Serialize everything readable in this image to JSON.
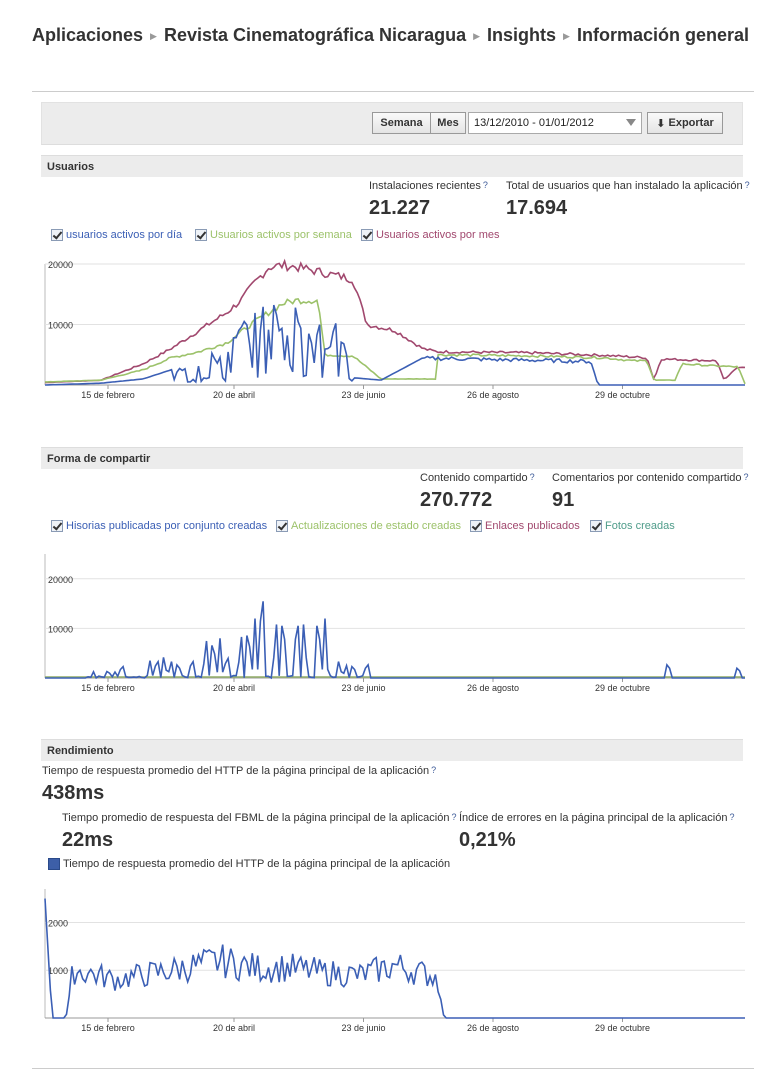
{
  "breadcrumb": [
    "Aplicaciones",
    "Revista Cinematográfica Nicaragua",
    "Insights",
    "Información general"
  ],
  "toolbar": {
    "week_label": "Semana",
    "month_label": "Mes",
    "date_range": "13/12/2010 - 01/01/2012",
    "export_label": "Exportar"
  },
  "usuarios": {
    "title": "Usuarios",
    "stats": [
      {
        "label": "Instalaciones recientes",
        "value": "21.227"
      },
      {
        "label": "Total de usuarios que han instalado la aplicación",
        "value": "17.694"
      }
    ],
    "legend": [
      {
        "label": "usuarios activos por día",
        "color": "#3b5fb5"
      },
      {
        "label": "Usuarios activos por semana",
        "color": "#9cc26a"
      },
      {
        "label": "Usuarios activos por mes",
        "color": "#a1486e"
      }
    ]
  },
  "compartir": {
    "title": "Forma de compartir",
    "stats": [
      {
        "label": "Contenido compartido",
        "value": "270.772"
      },
      {
        "label": "Comentarios por contenido compartido",
        "value": "91"
      }
    ],
    "legend": [
      {
        "label": "Hisorias publicadas por conjunto creadas",
        "color": "#3b5fb5"
      },
      {
        "label": "Actualizaciones de estado creadas",
        "color": "#9cc26a"
      },
      {
        "label": "Enlaces publicados",
        "color": "#a1486e"
      },
      {
        "label": "Fotos creadas",
        "color": "#4f9c8a"
      }
    ]
  },
  "rendimiento": {
    "title": "Rendimiento",
    "stats": [
      {
        "label": "Tiempo de respuesta promedio del HTTP de la página principal de la aplicación",
        "value": "438ms"
      },
      {
        "label": "Tiempo promedio de respuesta del FBML de la página principal de la aplicación",
        "value": "22ms"
      },
      {
        "label": "Índice de errores en la página principal de la aplicación",
        "value": "0,21%"
      }
    ],
    "legend": [
      {
        "label": "Tiempo de respuesta promedio del HTTP de la página principal de la aplicación",
        "color": "#3b5fb5"
      }
    ]
  },
  "chart_data": [
    {
      "type": "line",
      "title": "Usuarios",
      "x_ticks": [
        "15 de febrero",
        "20 de abril",
        "23 de junio",
        "26 de agosto",
        "29 de octubre"
      ],
      "y_ticks": [
        "20000",
        "10000"
      ],
      "ylim": [
        0,
        20000
      ],
      "grid": true,
      "series": [
        {
          "name": "usuarios activos por día",
          "trend": [
            [
              0,
              0
            ],
            [
              8,
              300
            ],
            [
              14,
              1000
            ],
            [
              18,
              2500
            ],
            [
              22,
              4000
            ],
            [
              26,
              5000
            ],
            [
              28,
              9000
            ],
            [
              30,
              10000
            ],
            [
              32,
              12000
            ],
            [
              34,
              12000
            ],
            [
              36,
              11000
            ],
            [
              38,
              10000
            ],
            [
              40,
              8000
            ],
            [
              42,
              9000
            ],
            [
              44,
              1200
            ],
            [
              48,
              800
            ],
            [
              54,
              4500
            ],
            [
              58,
              4500
            ],
            [
              64,
              4300
            ],
            [
              70,
              4200
            ],
            [
              78,
              4000
            ],
            [
              79,
              0
            ],
            [
              100,
              0
            ]
          ]
        },
        {
          "name": "Usuarios activos por semana",
          "trend": [
            [
              0,
              500
            ],
            [
              8,
              800
            ],
            [
              14,
              2500
            ],
            [
              18,
              4500
            ],
            [
              22,
              5500
            ],
            [
              26,
              7000
            ],
            [
              30,
              10500
            ],
            [
              34,
              13500
            ],
            [
              36,
              14000
            ],
            [
              39,
              14000
            ],
            [
              40,
              5000
            ],
            [
              44,
              4800
            ],
            [
              48,
              1000
            ],
            [
              56,
              1000
            ],
            [
              56,
              5000
            ],
            [
              70,
              4800
            ],
            [
              80,
              4500
            ],
            [
              84,
              4000
            ],
            [
              86,
              4000
            ],
            [
              87,
              800
            ],
            [
              90,
              800
            ],
            [
              91,
              3500
            ],
            [
              95,
              3200
            ],
            [
              99,
              3000
            ],
            [
              100,
              200
            ]
          ]
        },
        {
          "name": "Usuarios activos por mes",
          "trend": [
            [
              0,
              400
            ],
            [
              8,
              800
            ],
            [
              14,
              3500
            ],
            [
              18,
              6000
            ],
            [
              22,
              9000
            ],
            [
              26,
              12000
            ],
            [
              28,
              14000
            ],
            [
              30,
              17000
            ],
            [
              32,
              19500
            ],
            [
              34,
              19800
            ],
            [
              36,
              19500
            ],
            [
              40,
              18500
            ],
            [
              44,
              17500
            ],
            [
              46,
              10000
            ],
            [
              50,
              9000
            ],
            [
              54,
              6000
            ],
            [
              56,
              5500
            ],
            [
              70,
              5300
            ],
            [
              80,
              4900
            ],
            [
              86,
              4500
            ],
            [
              87,
              800
            ],
            [
              88,
              4300
            ],
            [
              96,
              4000
            ],
            [
              97,
              800
            ],
            [
              99,
              3000
            ],
            [
              100,
              3000
            ]
          ]
        }
      ]
    },
    {
      "type": "line",
      "title": "Forma de compartir",
      "x_ticks": [
        "15 de febrero",
        "20 de abril",
        "23 de junio",
        "26 de agosto",
        "29 de octubre"
      ],
      "y_ticks": [
        "20000",
        "10000"
      ],
      "ylim": [
        0,
        25000
      ],
      "grid": true,
      "series": [
        {
          "name": "Hisorias publicadas por conjunto creadas",
          "peaks": [
            [
              7,
              1500
            ],
            [
              9,
              2000
            ],
            [
              10,
              1200
            ],
            [
              11,
              3500
            ],
            [
              15,
              3500
            ],
            [
              16,
              5000
            ],
            [
              17,
              5000
            ],
            [
              18,
              4000
            ],
            [
              19,
              4000
            ],
            [
              21,
              5000
            ],
            [
              23,
              9000
            ],
            [
              24,
              10000
            ],
            [
              25,
              8000
            ],
            [
              26,
              6000
            ],
            [
              28,
              10000
            ],
            [
              29,
              13000
            ],
            [
              30,
              12000
            ],
            [
              31,
              23500
            ],
            [
              33,
              13000
            ],
            [
              34,
              16000
            ],
            [
              36,
              16000
            ],
            [
              37,
              13000
            ],
            [
              39,
              16000
            ],
            [
              40,
              12000
            ],
            [
              42,
              4000
            ],
            [
              43,
              3000
            ],
            [
              44,
              3500
            ],
            [
              46,
              4000
            ],
            [
              89,
              4000
            ],
            [
              99,
              3000
            ]
          ]
        },
        {
          "name": "Actualizaciones de estado creadas",
          "values": "near zero"
        },
        {
          "name": "Enlaces publicados",
          "values": "near zero"
        },
        {
          "name": "Fotos creadas",
          "values": "near zero"
        }
      ]
    },
    {
      "type": "line",
      "title": "Rendimiento",
      "x_ticks": [
        "15 de febrero",
        "20 de abril",
        "23 de junio",
        "26 de agosto",
        "29 de octubre"
      ],
      "y_ticks": [
        "2000",
        "1000"
      ],
      "ylim": [
        0,
        2700
      ],
      "grid": true,
      "series": [
        {
          "name": "Tiempo de respuesta promedio del HTTP de la página principal de la aplicación",
          "trend": [
            [
              0,
              2500
            ],
            [
              1,
              0
            ],
            [
              3,
              0
            ],
            [
              4,
              1000
            ],
            [
              6,
              950
            ],
            [
              10,
              800
            ],
            [
              20,
              1050
            ],
            [
              25,
              1200
            ],
            [
              30,
              1050
            ],
            [
              35,
              1050
            ],
            [
              40,
              950
            ],
            [
              45,
              900
            ],
            [
              50,
              1100
            ],
            [
              56,
              850
            ],
            [
              57,
              0
            ],
            [
              100,
              0
            ]
          ]
        }
      ]
    }
  ]
}
